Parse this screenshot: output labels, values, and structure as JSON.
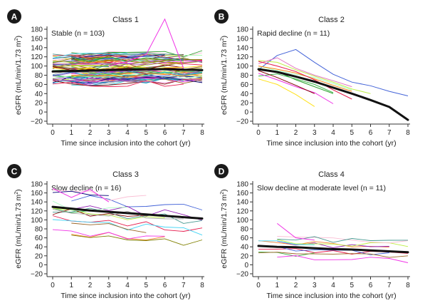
{
  "figure": {
    "x_values": [
      0,
      1,
      2,
      3,
      4,
      5,
      6,
      7,
      8
    ],
    "mean_line_color": "#111111",
    "palette": [
      "#e6194b",
      "#3cb44b",
      "#4363d8",
      "#f58231",
      "#911eb4",
      "#42d4f4",
      "#f032e6",
      "#bfef45",
      "#fabed4",
      "#469990",
      "#9a6324",
      "#800000",
      "#aaffc3",
      "#808000",
      "#000075",
      "#a9a9a9",
      "#ffe119",
      "#e377c2",
      "#17becf",
      "#bcbd22",
      "#1f77b4",
      "#ff7f0e",
      "#2ca02c",
      "#d62728",
      "#9467bd",
      "#8c564b"
    ]
  },
  "chart_data": [
    {
      "panel_letter": "A",
      "type": "line",
      "title": "Class 1",
      "subtitle": "Stable (n = 103)",
      "xlabel": "Time since inclusion into the cohort (yr)",
      "ylabel": "eGFR (mL/min/1.73 m",
      "ylabel_sup": "2",
      "ylabel_end": ")",
      "xlim": [
        0,
        8
      ],
      "ylim": [
        -20,
        180
      ],
      "y_ticks": [
        -20,
        0,
        20,
        40,
        60,
        80,
        100,
        120,
        140,
        160,
        180
      ],
      "x_ticks": [
        0,
        1,
        2,
        3,
        4,
        5,
        6,
        7,
        8
      ],
      "n_trajectories": 103,
      "trajectory_band": [
        60,
        125
      ],
      "mean_trajectory": {
        "x": [
          0,
          1,
          2,
          3,
          4,
          5,
          6,
          7,
          8
        ],
        "y": [
          88,
          89,
          90,
          91,
          92,
          93,
          93,
          92,
          91
        ]
      },
      "notable_series": [
        {
          "name": "peak",
          "x": [
            3,
            4,
            5,
            6,
            7
          ],
          "y": [
            100,
            110,
            125,
            202,
            95
          ]
        }
      ]
    },
    {
      "panel_letter": "B",
      "type": "line",
      "title": "Class 2",
      "subtitle": "Rapid decline (n = 11)",
      "xlabel": "Time since inclusion into the cohort (yr)",
      "ylabel": "eGFR (mL/min/1.73 m",
      "ylabel_sup": "2",
      "ylabel_end": ")",
      "xlim": [
        0,
        8
      ],
      "ylim": [
        -20,
        180
      ],
      "y_ticks": [
        -20,
        0,
        20,
        40,
        60,
        80,
        100,
        120,
        140,
        160,
        180
      ],
      "x_ticks": [
        0,
        1,
        2,
        3,
        4,
        5,
        6,
        7,
        8
      ],
      "n_trajectories": 11,
      "mean_trajectory": {
        "x": [
          0,
          1,
          2,
          3,
          4,
          5,
          6,
          7,
          8
        ],
        "y": [
          93,
          87,
          77,
          66,
          53,
          40,
          26,
          11,
          -17
        ]
      },
      "series": [
        {
          "x": [
            0,
            1,
            2,
            3,
            4,
            5,
            6,
            7,
            8
          ],
          "y": [
            92,
            123,
            136,
            108,
            82,
            65,
            57,
            45,
            35
          ]
        },
        {
          "x": [
            0,
            1,
            2,
            3,
            4,
            5,
            6
          ],
          "y": [
            112,
            108,
            92,
            78,
            65,
            50,
            40
          ]
        },
        {
          "x": [
            0,
            1,
            2,
            3,
            4,
            5
          ],
          "y": [
            100,
            90,
            82,
            75,
            62,
            48
          ]
        },
        {
          "x": [
            0,
            1,
            2,
            3,
            4,
            5
          ],
          "y": [
            105,
            118,
            95,
            80,
            68,
            55
          ]
        },
        {
          "x": [
            0,
            1,
            2,
            3,
            4
          ],
          "y": [
            95,
            88,
            70,
            55,
            40
          ]
        },
        {
          "x": [
            0,
            1,
            2,
            3,
            4
          ],
          "y": [
            78,
            83,
            72,
            60,
            42
          ]
        },
        {
          "x": [
            0,
            1,
            2,
            3,
            4
          ],
          "y": [
            84,
            70,
            55,
            42,
            18
          ]
        },
        {
          "x": [
            0,
            1,
            2,
            3
          ],
          "y": [
            90,
            75,
            58,
            40
          ]
        },
        {
          "x": [
            0,
            1,
            2,
            3
          ],
          "y": [
            72,
            60,
            38,
            12
          ]
        },
        {
          "x": [
            0,
            1,
            2,
            3,
            4,
            5
          ],
          "y": [
            100,
            93,
            85,
            72,
            58,
            45
          ]
        },
        {
          "x": [
            0,
            1,
            2,
            3,
            4,
            5
          ],
          "y": [
            110,
            100,
            88,
            70,
            48,
            28
          ]
        }
      ]
    },
    {
      "panel_letter": "C",
      "type": "line",
      "title": "Class 3",
      "subtitle": "Slow decline (n = 16)",
      "xlabel": "Time since inclusion into the cohort (yr)",
      "ylabel": "eGFR (mL/min/1.73 m",
      "ylabel_sup": "2",
      "ylabel_end": ")",
      "xlim": [
        0,
        8
      ],
      "ylim": [
        -20,
        180
      ],
      "y_ticks": [
        -20,
        0,
        20,
        40,
        60,
        80,
        100,
        120,
        140,
        160,
        180
      ],
      "x_ticks": [
        0,
        1,
        2,
        3,
        4,
        5,
        6,
        7,
        8
      ],
      "n_trajectories": 16,
      "trajectory_band": [
        75,
        165
      ],
      "mean_trajectory": {
        "x": [
          0,
          1,
          2,
          3,
          4,
          5,
          6,
          7,
          8
        ],
        "y": [
          129,
          125,
          121,
          118,
          115,
          112,
          109,
          106,
          103
        ]
      },
      "notable_series": [
        {
          "name": "high",
          "x": [
            0,
            1,
            2,
            3
          ],
          "y": [
            170,
            150,
            168,
            140
          ]
        }
      ]
    },
    {
      "panel_letter": "D",
      "type": "line",
      "title": "Class 4",
      "subtitle": "Slow decline at moderate level (n = 11)",
      "xlabel": "Time since inclusion into the cohort (yr)",
      "ylabel": "eGFR (mL/min/1.73 m",
      "ylabel_sup": "2",
      "ylabel_end": ")",
      "xlim": [
        0,
        8
      ],
      "ylim": [
        -20,
        180
      ],
      "y_ticks": [
        -20,
        0,
        20,
        40,
        60,
        80,
        100,
        120,
        140,
        160,
        180
      ],
      "x_ticks": [
        0,
        1,
        2,
        3,
        4,
        5,
        6,
        7,
        8
      ],
      "n_trajectories": 11,
      "trajectory_band": [
        15,
        70
      ],
      "mean_trajectory": {
        "x": [
          0,
          1,
          2,
          3,
          4,
          5,
          6,
          7,
          8
        ],
        "y": [
          42,
          40,
          39,
          37,
          35,
          34,
          32,
          30,
          28
        ]
      },
      "notable_series": [
        {
          "name": "peak",
          "x": [
            1,
            2,
            3
          ],
          "y": [
            92,
            60,
            55
          ]
        }
      ]
    }
  ]
}
